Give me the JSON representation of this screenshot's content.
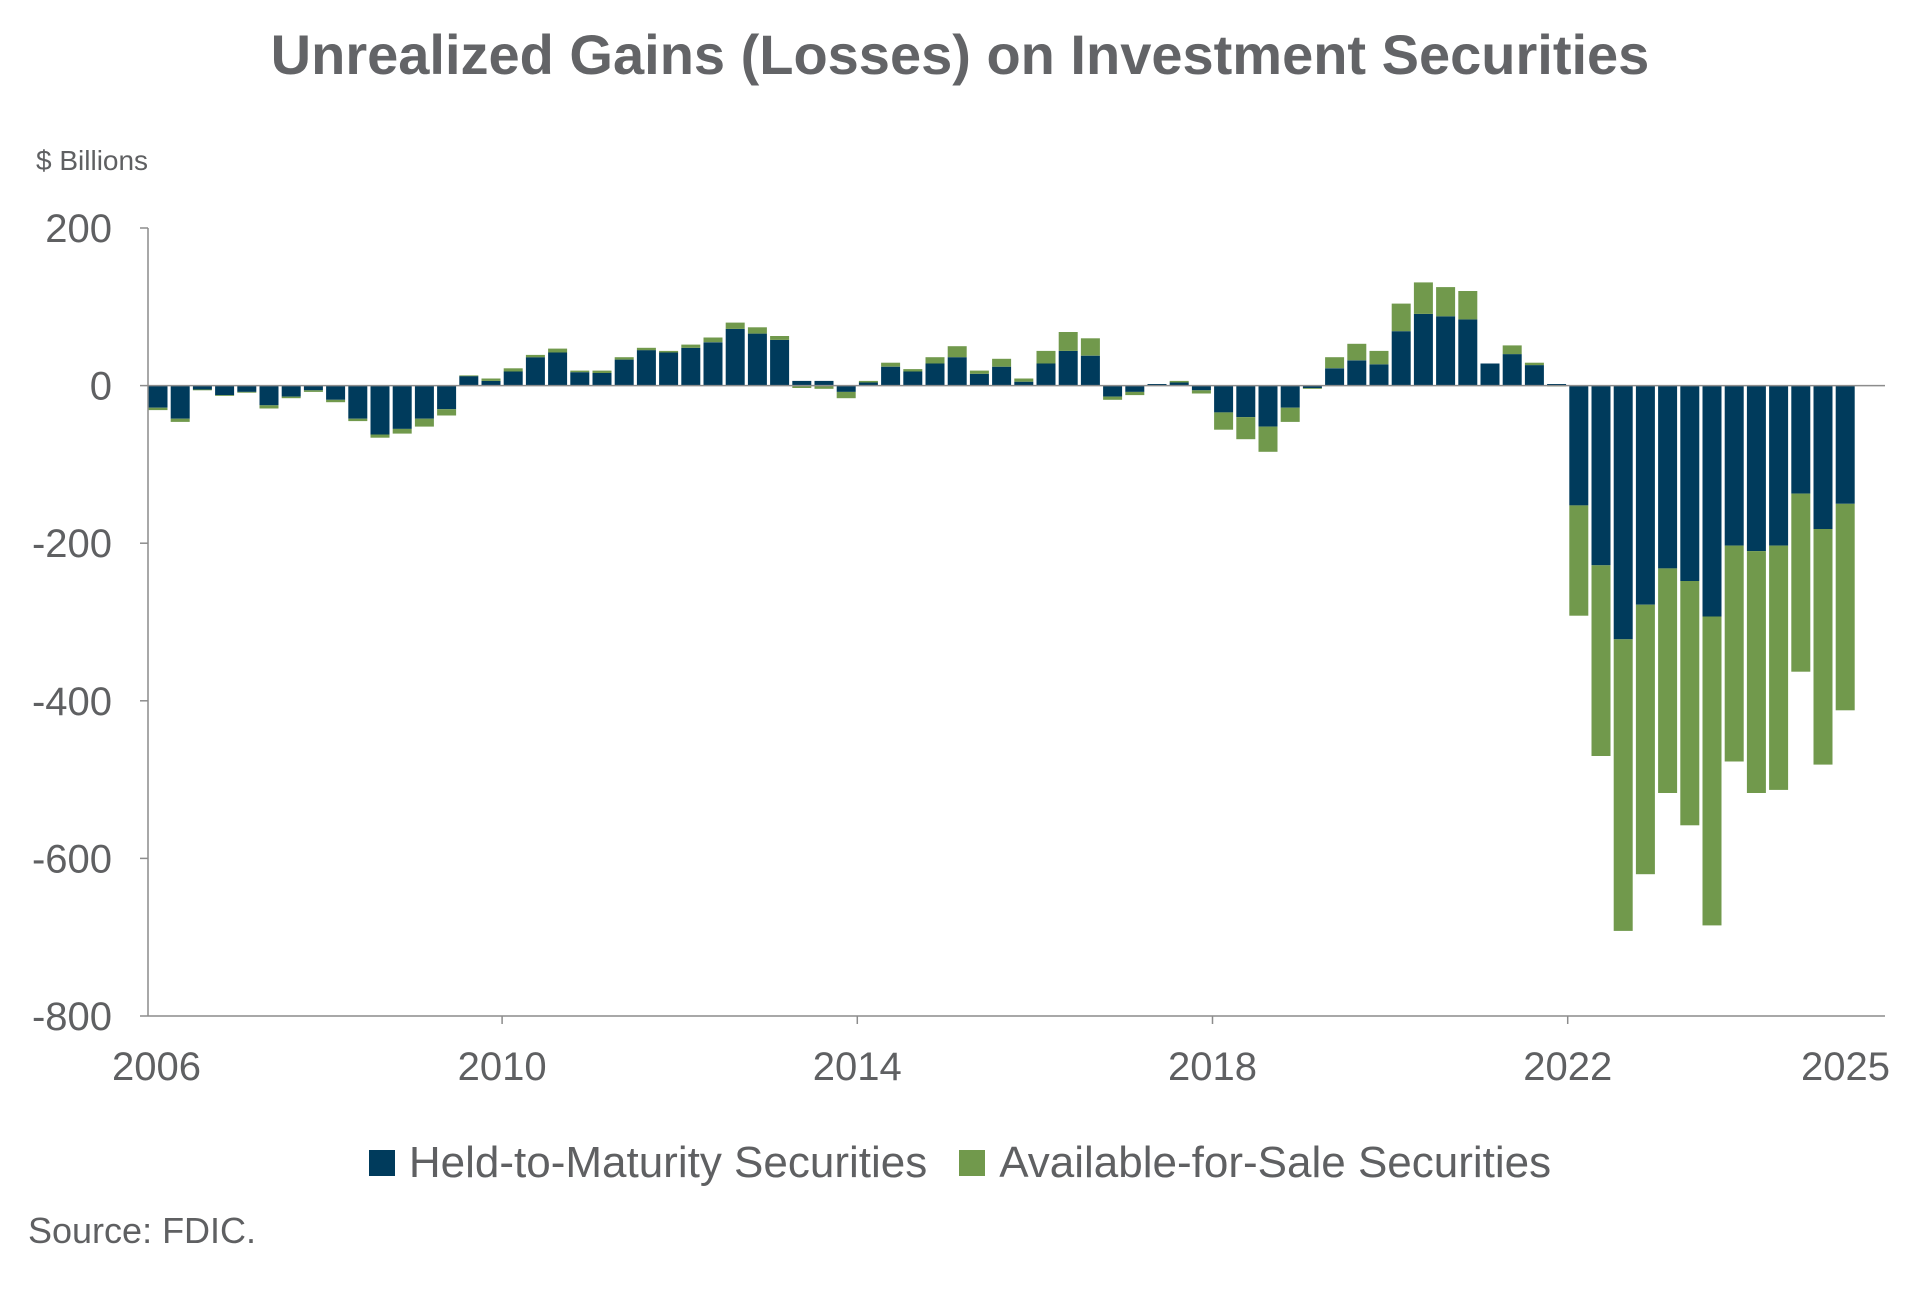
{
  "chart_data": {
    "type": "bar",
    "stacked": true,
    "title": "Unrealized Gains (Losses) on Investment Securities",
    "ylabel": "$ Billions",
    "ylim": [
      -800,
      200
    ],
    "yticks": [
      200,
      0,
      -200,
      -400,
      -600,
      -800
    ],
    "ytick_labels": [
      "200",
      "0",
      "-200",
      "-400",
      "-600",
      "-800"
    ],
    "xtick_labels": [
      "2006",
      "2010",
      "2014",
      "2018",
      "2022",
      "2025"
    ],
    "grid": false,
    "legend_position": "bottom",
    "categories": [
      "2006Q1",
      "2006Q2",
      "2006Q3",
      "2006Q4",
      "2007Q1",
      "2007Q2",
      "2007Q3",
      "2007Q4",
      "2008Q1",
      "2008Q2",
      "2008Q3",
      "2008Q4",
      "2009Q1",
      "2009Q2",
      "2009Q3",
      "2009Q4",
      "2010Q1",
      "2010Q2",
      "2010Q3",
      "2010Q4",
      "2011Q1",
      "2011Q2",
      "2011Q3",
      "2011Q4",
      "2012Q1",
      "2012Q2",
      "2012Q3",
      "2012Q4",
      "2013Q1",
      "2013Q2",
      "2013Q3",
      "2013Q4",
      "2014Q1",
      "2014Q2",
      "2014Q3",
      "2014Q4",
      "2015Q1",
      "2015Q2",
      "2015Q3",
      "2015Q4",
      "2016Q1",
      "2016Q2",
      "2016Q3",
      "2016Q4",
      "2017Q1",
      "2017Q2",
      "2017Q3",
      "2017Q4",
      "2018Q1",
      "2018Q2",
      "2018Q3",
      "2018Q4",
      "2019Q1",
      "2019Q2",
      "2019Q3",
      "2019Q4",
      "2020Q1",
      "2020Q2",
      "2020Q3",
      "2020Q4",
      "2021Q1",
      "2021Q2",
      "2021Q3",
      "2021Q4",
      "2022Q1",
      "2022Q2",
      "2022Q3",
      "2022Q4",
      "2023Q1",
      "2023Q2",
      "2023Q3",
      "2023Q4",
      "2024Q1",
      "2024Q2",
      "2024Q3",
      "2024Q4",
      "2025Q1"
    ],
    "series": [
      {
        "name": "Held-to-Maturity Securities",
        "color": "#003b5c",
        "values": [
          -28,
          -42,
          -5,
          -12,
          -8,
          -25,
          -14,
          -6,
          -18,
          -42,
          -62,
          -55,
          -42,
          -30,
          12,
          6,
          18,
          36,
          42,
          17,
          16,
          33,
          45,
          42,
          48,
          55,
          72,
          66,
          58,
          6,
          6,
          -8,
          4,
          24,
          18,
          28,
          36,
          15,
          24,
          5,
          28,
          44,
          38,
          -14,
          -8,
          2,
          4,
          -6,
          -34,
          -40,
          -52,
          -28,
          -3,
          22,
          32,
          27,
          69,
          91,
          88,
          84,
          28,
          40,
          26,
          2,
          -152,
          -228,
          -322,
          -278,
          -232,
          -248,
          -293,
          -203,
          -210,
          -203,
          -137,
          -182,
          -150
        ]
      },
      {
        "name": "Available-for-Sale Securities",
        "color": "#71994c",
        "values": [
          -3,
          -4,
          -1,
          -1,
          -1,
          -4,
          -2,
          -2,
          -3,
          -3,
          -4,
          -6,
          -10,
          -8,
          1,
          3,
          4,
          3,
          5,
          2,
          3,
          3,
          3,
          2,
          4,
          6,
          8,
          8,
          5,
          -3,
          -4,
          -8,
          2,
          5,
          3,
          8,
          14,
          4,
          10,
          4,
          16,
          24,
          22,
          -4,
          -4,
          0,
          2,
          -4,
          -22,
          -28,
          -32,
          -18,
          -1,
          14,
          21,
          17,
          35,
          40,
          37,
          36,
          0,
          11,
          3,
          -1,
          -140,
          -242,
          -370,
          -342,
          -285,
          -310,
          -392,
          -274,
          -307,
          -310,
          -226,
          -299,
          -262
        ]
      }
    ]
  },
  "legend": {
    "items": [
      {
        "label": "Held-to-Maturity Securities",
        "color": "#003b5c"
      },
      {
        "label": "Available-for-Sale Securities",
        "color": "#71994c"
      }
    ]
  },
  "source": "Source: FDIC."
}
